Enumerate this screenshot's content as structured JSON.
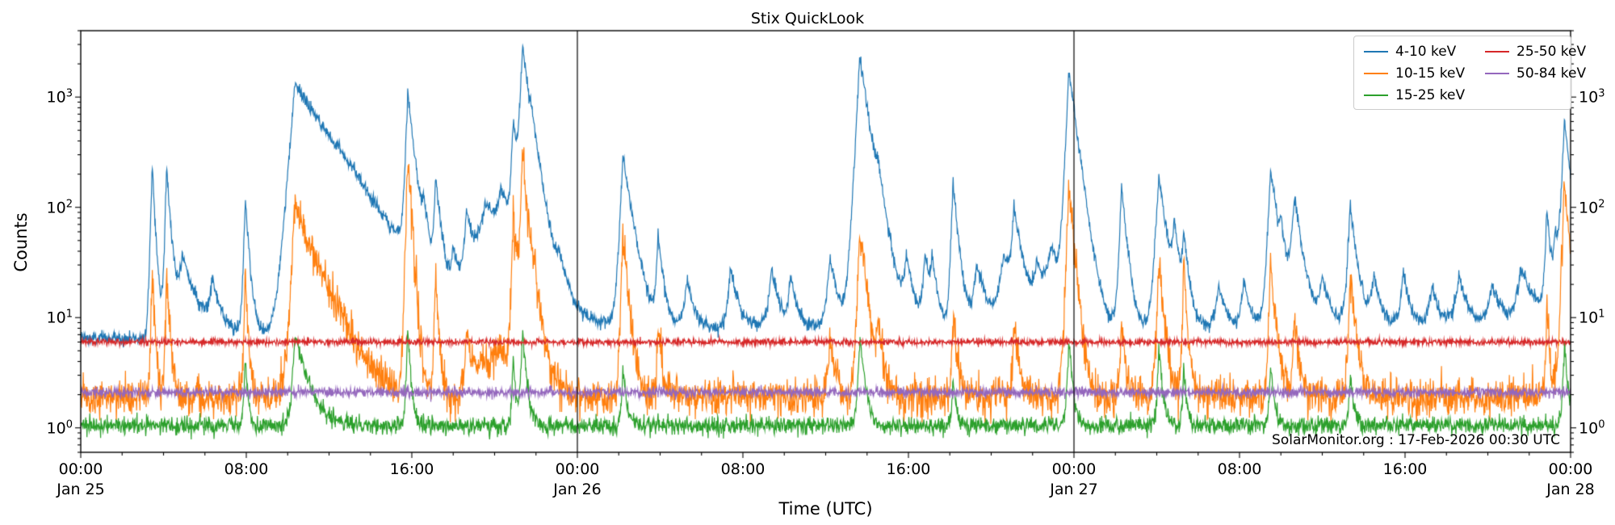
{
  "chart_data": {
    "type": "line",
    "title": "Stix QuickLook",
    "xlabel": "Time (UTC)",
    "ylabel": "Counts",
    "annotation": "SolarMonitor.org : 17-Feb-2026 00:30 UTC",
    "yscale": "log",
    "ylim": [
      0.6,
      4000
    ],
    "x_unit": "hours since Jan 25 00:00 UTC",
    "x_range_hours": [
      0,
      72
    ],
    "grid": false,
    "legend_position": "top-right",
    "day_lines_hours": [
      24,
      48
    ],
    "y_ticks": [
      1,
      10,
      100,
      1000
    ],
    "x_ticks": [
      {
        "hour": 0,
        "time": "00:00",
        "day": "Jan 25"
      },
      {
        "hour": 8,
        "time": "08:00"
      },
      {
        "hour": 16,
        "time": "16:00"
      },
      {
        "hour": 24,
        "time": "00:00",
        "day": "Jan 26"
      },
      {
        "hour": 32,
        "time": "08:00"
      },
      {
        "hour": 40,
        "time": "16:00"
      },
      {
        "hour": 48,
        "time": "00:00",
        "day": "Jan 27"
      },
      {
        "hour": 56,
        "time": "08:00"
      },
      {
        "hour": 64,
        "time": "16:00"
      },
      {
        "hour": 72,
        "time": "00:00",
        "day": "Jan 28"
      }
    ],
    "series": [
      {
        "name": "4-10 keV",
        "color": "#1f77b4",
        "noise_sigma": 0.07,
        "baseline": [
          [
            0,
            6.5
          ],
          [
            3,
            6.5
          ],
          [
            5,
            8.5
          ],
          [
            7,
            7.5
          ],
          [
            9,
            7
          ],
          [
            10,
            8
          ],
          [
            11.5,
            14
          ],
          [
            13,
            11
          ],
          [
            14.5,
            9
          ],
          [
            17,
            8
          ],
          [
            18.3,
            10
          ],
          [
            19,
            30
          ],
          [
            19.8,
            55
          ],
          [
            20.5,
            60
          ],
          [
            21,
            45
          ],
          [
            21.8,
            35
          ],
          [
            22.3,
            18
          ],
          [
            23,
            12
          ],
          [
            24,
            10
          ],
          [
            25,
            9
          ],
          [
            27,
            8.5
          ],
          [
            30,
            8
          ],
          [
            33,
            8
          ],
          [
            36,
            8.5
          ],
          [
            38,
            9
          ],
          [
            40,
            8
          ],
          [
            42,
            8.5
          ],
          [
            44,
            9
          ],
          [
            46,
            9
          ],
          [
            48,
            8
          ],
          [
            50,
            8
          ],
          [
            52,
            8.5
          ],
          [
            54,
            8
          ],
          [
            56,
            8
          ],
          [
            58,
            9
          ],
          [
            60,
            9
          ],
          [
            62,
            8.5
          ],
          [
            64,
            8
          ],
          [
            66,
            8
          ],
          [
            68,
            8
          ],
          [
            70,
            9
          ],
          [
            71.5,
            14
          ],
          [
            72,
            13
          ]
        ],
        "spikes": [
          [
            3.45,
            230,
            0.06,
            0.12
          ],
          [
            4.15,
            230,
            0.06,
            0.15
          ],
          [
            4.9,
            28,
            0.2,
            0.5
          ],
          [
            6.35,
            14,
            0.15,
            0.3
          ],
          [
            7.95,
            115,
            0.06,
            0.15
          ],
          [
            10.35,
            1300,
            0.18,
            1.5
          ],
          [
            12.45,
            50,
            0.1,
            0.3
          ],
          [
            13.2,
            20,
            0.15,
            0.3
          ],
          [
            15.8,
            1050,
            0.08,
            0.25
          ],
          [
            16.55,
            60,
            0.08,
            0.2
          ],
          [
            17.15,
            165,
            0.07,
            0.2
          ],
          [
            18.0,
            25,
            0.1,
            0.3
          ],
          [
            18.65,
            70,
            0.1,
            0.25
          ],
          [
            19.55,
            60,
            0.2,
            0.4
          ],
          [
            20.3,
            90,
            0.15,
            0.3
          ],
          [
            20.9,
            560,
            0.08,
            0.18
          ],
          [
            21.35,
            2700,
            0.1,
            0.3
          ],
          [
            21.75,
            160,
            0.1,
            0.4
          ],
          [
            23.1,
            18,
            0.2,
            0.4
          ],
          [
            26.2,
            290,
            0.1,
            0.35
          ],
          [
            27.9,
            50,
            0.07,
            0.2
          ],
          [
            29.3,
            14,
            0.15,
            0.3
          ],
          [
            31.4,
            22,
            0.12,
            0.3
          ],
          [
            33.4,
            20,
            0.15,
            0.3
          ],
          [
            34.3,
            16,
            0.1,
            0.25
          ],
          [
            36.2,
            28,
            0.12,
            0.3
          ],
          [
            37.65,
            2250,
            0.12,
            0.35
          ],
          [
            38.5,
            85,
            0.1,
            0.3
          ],
          [
            39.9,
            25,
            0.12,
            0.3
          ],
          [
            40.8,
            28,
            0.1,
            0.25
          ],
          [
            41.15,
            22,
            0.08,
            0.2
          ],
          [
            42.15,
            165,
            0.07,
            0.2
          ],
          [
            43.3,
            22,
            0.15,
            0.35
          ],
          [
            44.6,
            28,
            0.2,
            0.5
          ],
          [
            45.1,
            85,
            0.1,
            0.3
          ],
          [
            46.2,
            20,
            0.2,
            0.5
          ],
          [
            46.9,
            32,
            0.2,
            0.5
          ],
          [
            47.75,
            1750,
            0.1,
            0.3
          ],
          [
            50.3,
            155,
            0.08,
            0.2
          ],
          [
            52.1,
            185,
            0.12,
            0.3
          ],
          [
            52.85,
            55,
            0.1,
            0.25
          ],
          [
            53.3,
            40,
            0.07,
            0.2
          ],
          [
            55.0,
            12,
            0.15,
            0.3
          ],
          [
            56.2,
            14,
            0.12,
            0.25
          ],
          [
            57.5,
            215,
            0.1,
            0.3
          ],
          [
            58.0,
            35,
            0.08,
            0.2
          ],
          [
            58.65,
            115,
            0.12,
            0.3
          ],
          [
            60.0,
            14,
            0.15,
            0.3
          ],
          [
            61.35,
            95,
            0.1,
            0.25
          ],
          [
            62.5,
            15,
            0.15,
            0.3
          ],
          [
            63.9,
            18,
            0.12,
            0.3
          ],
          [
            65.3,
            12,
            0.15,
            0.3
          ],
          [
            66.6,
            15,
            0.2,
            0.4
          ],
          [
            68.2,
            12,
            0.2,
            0.4
          ],
          [
            69.6,
            20,
            0.2,
            0.5
          ],
          [
            70.85,
            80,
            0.07,
            0.15
          ],
          [
            71.25,
            40,
            0.07,
            0.15
          ],
          [
            71.7,
            580,
            0.1,
            0.25
          ]
        ]
      },
      {
        "name": "10-15 keV",
        "color": "#ff7f0e",
        "noise_sigma": 0.2,
        "baseline": [
          [
            0,
            1.9
          ],
          [
            18.8,
            1.9
          ],
          [
            19.3,
            3.5
          ],
          [
            20,
            4.5
          ],
          [
            21,
            5
          ],
          [
            22,
            4
          ],
          [
            22.8,
            2.5
          ],
          [
            23.5,
            2
          ],
          [
            24,
            1.9
          ],
          [
            72,
            1.9
          ]
        ],
        "spikes": [
          [
            3.45,
            24,
            0.05,
            0.1
          ],
          [
            4.15,
            24,
            0.05,
            0.12
          ],
          [
            7.95,
            24,
            0.05,
            0.1
          ],
          [
            10.35,
            100,
            0.12,
            0.9
          ],
          [
            12.45,
            3,
            0.1,
            0.2
          ],
          [
            15.8,
            290,
            0.06,
            0.15
          ],
          [
            17.15,
            22,
            0.05,
            0.12
          ],
          [
            18.65,
            6,
            0.08,
            0.2
          ],
          [
            20.9,
            95,
            0.06,
            0.12
          ],
          [
            21.35,
            290,
            0.08,
            0.2
          ],
          [
            21.75,
            20,
            0.08,
            0.3
          ],
          [
            26.2,
            55,
            0.07,
            0.2
          ],
          [
            27.9,
            7,
            0.05,
            0.15
          ],
          [
            36.2,
            5,
            0.08,
            0.2
          ],
          [
            37.65,
            65,
            0.08,
            0.25
          ],
          [
            38.5,
            7,
            0.07,
            0.2
          ],
          [
            42.15,
            9,
            0.05,
            0.15
          ],
          [
            45.1,
            7,
            0.07,
            0.2
          ],
          [
            47.75,
            160,
            0.08,
            0.2
          ],
          [
            50.3,
            8,
            0.06,
            0.15
          ],
          [
            52.1,
            28,
            0.08,
            0.2
          ],
          [
            53.3,
            22,
            0.05,
            0.15
          ],
          [
            57.5,
            28,
            0.07,
            0.2
          ],
          [
            58.65,
            7,
            0.08,
            0.2
          ],
          [
            61.35,
            22,
            0.07,
            0.2
          ],
          [
            70.85,
            9,
            0.05,
            0.12
          ],
          [
            71.7,
            160,
            0.08,
            0.2
          ]
        ]
      },
      {
        "name": "15-25 keV",
        "color": "#2ca02c",
        "noise_sigma": 0.09,
        "baseline": [
          [
            0,
            1.05
          ],
          [
            72,
            1.05
          ]
        ],
        "spikes": [
          [
            7.95,
            3.5,
            0.05,
            0.1
          ],
          [
            10.35,
            6,
            0.1,
            0.5
          ],
          [
            15.8,
            7,
            0.06,
            0.12
          ],
          [
            20.9,
            3.5,
            0.05,
            0.1
          ],
          [
            21.35,
            7,
            0.07,
            0.15
          ],
          [
            26.2,
            2.5,
            0.06,
            0.15
          ],
          [
            37.65,
            5.5,
            0.08,
            0.2
          ],
          [
            42.15,
            2,
            0.05,
            0.12
          ],
          [
            47.75,
            5.5,
            0.07,
            0.15
          ],
          [
            52.1,
            4.5,
            0.06,
            0.15
          ],
          [
            53.3,
            2.5,
            0.05,
            0.12
          ],
          [
            57.5,
            2.5,
            0.06,
            0.15
          ],
          [
            61.35,
            2,
            0.06,
            0.15
          ],
          [
            71.7,
            4.5,
            0.07,
            0.15
          ]
        ]
      },
      {
        "name": "25-50 keV",
        "color": "#d62728",
        "noise_sigma": 0.032,
        "baseline": [
          [
            0,
            6.0
          ],
          [
            72,
            6.0
          ]
        ],
        "spikes": []
      },
      {
        "name": "50-84 keV",
        "color": "#9467bd",
        "noise_sigma": 0.05,
        "baseline": [
          [
            0,
            2.1
          ],
          [
            72,
            2.1
          ]
        ],
        "spikes": []
      }
    ]
  }
}
